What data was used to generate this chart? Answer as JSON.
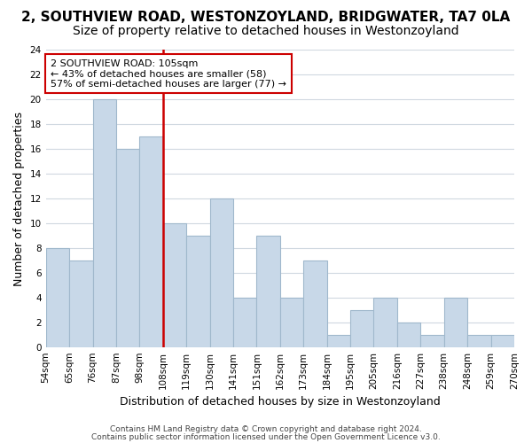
{
  "title": "2, SOUTHVIEW ROAD, WESTONZOYLAND, BRIDGWATER, TA7 0LA",
  "subtitle": "Size of property relative to detached houses in Westonzoyland",
  "xlabel": "Distribution of detached houses by size in Westonzoyland",
  "ylabel": "Number of detached properties",
  "bin_edges": [
    "54sqm",
    "65sqm",
    "76sqm",
    "87sqm",
    "98sqm",
    "108sqm",
    "119sqm",
    "130sqm",
    "141sqm",
    "151sqm",
    "162sqm",
    "173sqm",
    "184sqm",
    "195sqm",
    "205sqm",
    "216sqm",
    "227sqm",
    "238sqm",
    "248sqm",
    "259sqm",
    "270sqm"
  ],
  "bar_heights": [
    8,
    7,
    20,
    16,
    17,
    10,
    9,
    12,
    4,
    9,
    4,
    7,
    1,
    3,
    4,
    2,
    1,
    4,
    1,
    1
  ],
  "bar_color": "#c8d8e8",
  "bar_edge_color": "#a0b8cc",
  "vline_color": "#cc0000",
  "vline_pos": 4.5,
  "annotation_line1": "2 SOUTHVIEW ROAD: 105sqm",
  "annotation_line2": "← 43% of detached houses are smaller (58)",
  "annotation_line3": "57% of semi-detached houses are larger (77) →",
  "annotation_box_color": "#ffffff",
  "annotation_box_edge": "#cc0000",
  "ylim": [
    0,
    24
  ],
  "yticks": [
    0,
    2,
    4,
    6,
    8,
    10,
    12,
    14,
    16,
    18,
    20,
    22,
    24
  ],
  "footer1": "Contains HM Land Registry data © Crown copyright and database right 2024.",
  "footer2": "Contains public sector information licensed under the Open Government Licence v3.0.",
  "bg_color": "#ffffff",
  "grid_color": "#d0d8e0",
  "title_fontsize": 11,
  "subtitle_fontsize": 10,
  "tick_fontsize": 7.5,
  "ylabel_fontsize": 9,
  "xlabel_fontsize": 9,
  "footer_fontsize": 6.5
}
